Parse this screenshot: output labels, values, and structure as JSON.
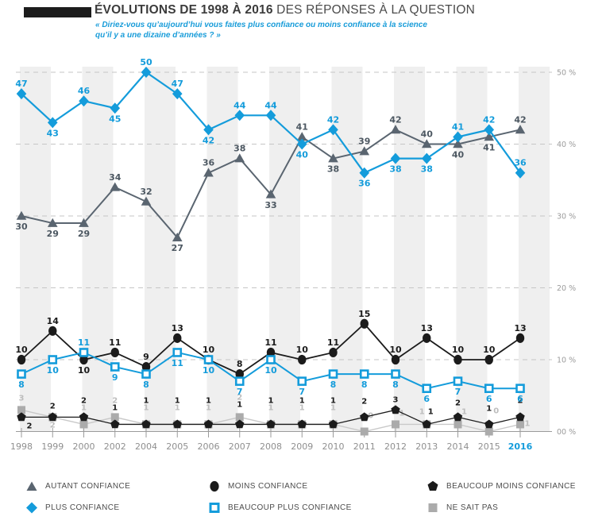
{
  "header": {
    "title_bold": "ÉVOLUTIONS DE 1998 À 2016",
    "title_rest": " DES RÉPONSES À LA QUESTION",
    "subtitle_line1": "« Diriez-vous qu’aujourd’hui vous faites plus confiance ou moins confiance à la science",
    "subtitle_line2": "qu’il y a une dizaine d’années ? »"
  },
  "chart_data": {
    "type": "line",
    "title": "ÉVOLUTIONS DE 1998 À 2016 DES RÉPONSES À LA QUESTION",
    "subtitle": "« Diriez-vous qu’aujourd’hui vous faites plus confiance ou moins confiance à la science qu’il y a une dizaine d’années ? »",
    "categories": [
      "1998",
      "1999",
      "2000",
      "2002",
      "2004",
      "2005",
      "2006",
      "2007",
      "2008",
      "2009",
      "2010",
      "2011",
      "2012",
      "2013",
      "2014",
      "2015",
      "2016"
    ],
    "x_axis": {
      "highlight_label": "2016"
    },
    "y_axis": {
      "ticks": [
        "00 %",
        "10 %",
        "20 %",
        "30 %",
        "40 %",
        "50 %"
      ],
      "min": 0,
      "max": 50,
      "unit": "%"
    },
    "ylim": [
      0,
      50
    ],
    "grid": "horizontal-dashed",
    "legend_position": "bottom",
    "colors": {
      "accent": "#149CDB",
      "band": "#EFEFEF",
      "grid": "#C6C6C6",
      "axis": "#9B9B9B",
      "axis_text": "#9C9C9C",
      "year_text": "#8F8F8F"
    },
    "draw_order": [
      5,
      4,
      2,
      3,
      0,
      1
    ],
    "series": [
      {
        "name": "AUTANT CONFIANCE",
        "marker": "triangle",
        "color": "#5A6570",
        "label_color": "#4D5862",
        "line_width": 2,
        "values": [
          30,
          29,
          29,
          34,
          32,
          27,
          36,
          38,
          33,
          41,
          38,
          39,
          42,
          40,
          40,
          41,
          42
        ],
        "label_pos": [
          "b",
          "b",
          "b",
          "a",
          "a",
          "b",
          "a",
          "a",
          "b",
          "a",
          "b",
          "a",
          "a",
          "a",
          "b",
          "b",
          "a"
        ]
      },
      {
        "name": "PLUS CONFIANCE",
        "marker": "diamond",
        "color": "#149CDB",
        "label_color": "#149CDB",
        "line_width": 2.2,
        "values": [
          47,
          43,
          46,
          45,
          50,
          47,
          42,
          44,
          44,
          40,
          42,
          36,
          38,
          38,
          41,
          42,
          36
        ],
        "label_pos": [
          "a",
          "b",
          "a",
          "b",
          "a",
          "a",
          "b",
          "a",
          "a",
          "b",
          "a",
          "b",
          "b",
          "b",
          "a",
          "a",
          "a"
        ]
      },
      {
        "name": "MOINS CONFIANCE",
        "marker": "circle",
        "color": "#1B1B1B",
        "label_color": "#1B1B1B",
        "line_width": 1.8,
        "values": [
          10,
          14,
          10,
          11,
          9,
          13,
          10,
          8,
          11,
          10,
          11,
          15,
          10,
          13,
          10,
          10,
          13
        ],
        "label_pos": [
          "a",
          "a",
          "b",
          "a",
          "a",
          "a",
          "a",
          "a",
          "a",
          "a",
          "a",
          "a",
          "a",
          "a",
          "a",
          "a",
          "a"
        ]
      },
      {
        "name": "BEAUCOUP PLUS CONFIANCE",
        "marker": "square-open",
        "color": "#149CDB",
        "label_color": "#149CDB",
        "line_width": 2,
        "values": [
          8,
          10,
          11,
          9,
          8,
          11,
          10,
          7,
          10,
          7,
          8,
          8,
          8,
          6,
          7,
          6,
          6
        ],
        "label_pos": [
          "b",
          "b",
          "a",
          "b",
          "b",
          "b",
          "b",
          "b",
          "b",
          "b",
          "b",
          "b",
          "b",
          "b",
          "b",
          "b",
          "b"
        ]
      },
      {
        "name": "BEAUCOUP MOINS CONFIANCE",
        "marker": "pentagon",
        "color": "#1B1B1B",
        "label_color": "#1B1B1B",
        "line_width": 1.3,
        "label_size": 10,
        "values": [
          2,
          2,
          2,
          1,
          1,
          1,
          1,
          1,
          1,
          1,
          1,
          2,
          3,
          1,
          2,
          1,
          2
        ],
        "label_offset": [
          [
            10,
            14
          ],
          [
            0,
            -11
          ],
          [
            0,
            -18
          ],
          [
            0,
            -18
          ],
          [
            0,
            -27
          ],
          [
            0,
            -27
          ],
          [
            0,
            -27
          ],
          [
            0,
            -22
          ],
          [
            0,
            -27
          ],
          [
            0,
            -27
          ],
          [
            0,
            -27
          ],
          [
            0,
            -17
          ],
          [
            0,
            -10
          ],
          [
            5,
            -13
          ],
          [
            0,
            -15
          ],
          [
            0,
            -17
          ],
          [
            0,
            -18
          ]
        ]
      },
      {
        "name": "NE SAIT PAS",
        "marker": "square",
        "color": "#ABABAB",
        "line_color": "#C9C9C9",
        "label_color": "#BDBDBD",
        "line_width": 1.4,
        "label_size": 10,
        "values": [
          3,
          2,
          1,
          2,
          1,
          1,
          1,
          2,
          1,
          1,
          1,
          0,
          1,
          1,
          1,
          0,
          1
        ],
        "label_offset": [
          [
            0,
            -12
          ],
          [
            0,
            13
          ],
          [
            0,
            -18
          ],
          [
            0,
            -18
          ],
          [
            0,
            -18
          ],
          [
            0,
            -18
          ],
          [
            0,
            -18
          ],
          [
            0,
            -22
          ],
          [
            0,
            -18
          ],
          [
            0,
            -18
          ],
          [
            0,
            -18
          ],
          [
            8,
            -17
          ],
          [
            8,
            -11
          ],
          [
            -6,
            -13
          ],
          [
            8,
            -13
          ],
          [
            9,
            -23
          ],
          [
            9,
            2
          ]
        ]
      }
    ]
  }
}
